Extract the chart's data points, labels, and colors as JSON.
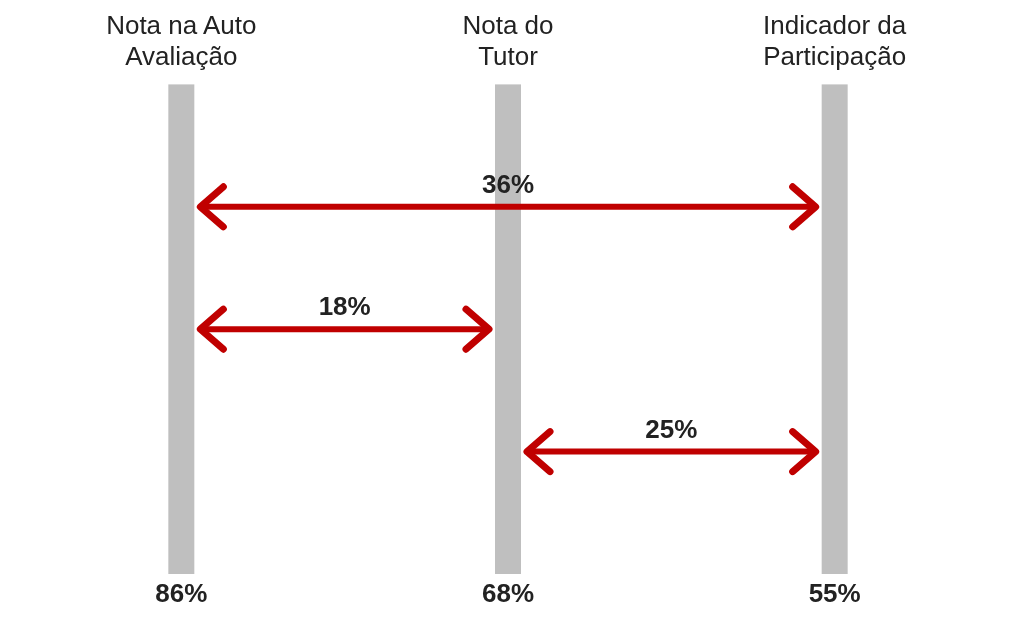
{
  "chart_data": {
    "type": "other",
    "categories": [
      "Nota na Auto Avaliação",
      "Nota do Tutor",
      "Indicador da Participação"
    ],
    "values": [
      86,
      68,
      55
    ],
    "value_labels": [
      "86%",
      "68%",
      "55%"
    ],
    "colors": [
      "#bfbfbf",
      "#bfbfbf",
      "#bfbfbf"
    ],
    "annotations": [
      "36%",
      "18%",
      "25%"
    ]
  }
}
